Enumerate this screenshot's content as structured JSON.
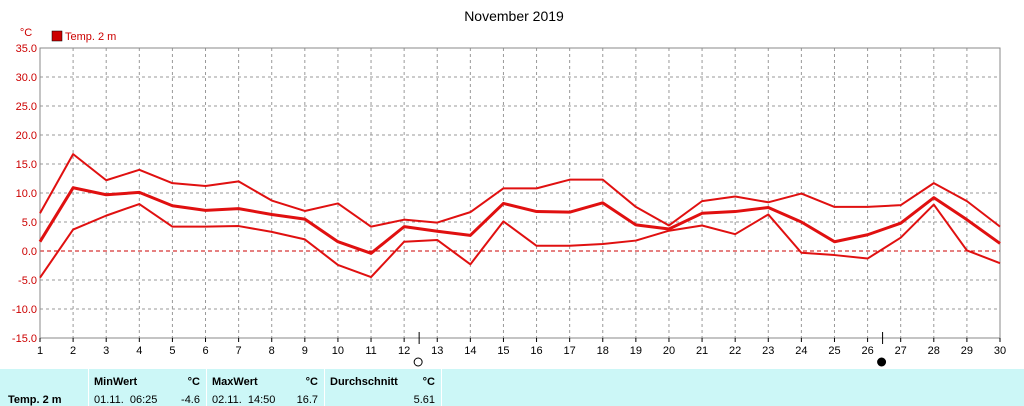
{
  "chart_data": {
    "type": "line",
    "title": "November 2019",
    "unit": "°C",
    "legend": {
      "label": "Temp. 2 m",
      "color": "#cc0000",
      "placement": "top-left"
    },
    "x": [
      1,
      2,
      3,
      4,
      5,
      6,
      7,
      8,
      9,
      10,
      11,
      12,
      13,
      14,
      15,
      16,
      17,
      18,
      19,
      20,
      21,
      22,
      23,
      24,
      25,
      26,
      27,
      28,
      29,
      30
    ],
    "ylim": [
      -15,
      35
    ],
    "yticks": [
      "35.0",
      "30.0",
      "25.0",
      "20.0",
      "15.0",
      "10.0",
      "5.0",
      "0.0",
      "-5.0",
      "-10.0",
      "-15.0"
    ],
    "grid": true,
    "series": [
      {
        "role": "max",
        "values": [
          6.5,
          16.7,
          12.2,
          14.0,
          11.7,
          11.2,
          12.0,
          8.7,
          6.9,
          8.2,
          4.2,
          5.4,
          4.9,
          6.7,
          10.8,
          10.8,
          12.3,
          12.3,
          7.6,
          4.4,
          8.6,
          9.4,
          8.4,
          9.9,
          7.6,
          7.6,
          7.9,
          11.7,
          8.6,
          4.2
        ]
      },
      {
        "role": "avg",
        "values": [
          1.6,
          10.9,
          9.7,
          10.1,
          7.8,
          7.0,
          7.3,
          6.3,
          5.5,
          1.6,
          -0.4,
          4.2,
          3.4,
          2.7,
          8.2,
          6.8,
          6.7,
          8.3,
          4.5,
          3.8,
          6.5,
          6.8,
          7.5,
          5.0,
          1.6,
          2.8,
          4.8,
          9.2,
          5.4,
          1.3
        ]
      },
      {
        "role": "min",
        "values": [
          -4.6,
          3.7,
          6.1,
          8.1,
          4.2,
          4.2,
          4.3,
          3.3,
          2.0,
          -2.4,
          -4.5,
          1.6,
          1.9,
          -2.3,
          5.1,
          0.9,
          0.9,
          1.2,
          1.8,
          3.5,
          4.4,
          2.9,
          6.3,
          -0.3,
          -0.7,
          -1.3,
          2.3,
          8.0,
          0.1,
          -2.1
        ]
      }
    ],
    "moon_phases": [
      {
        "day": 12,
        "phase": "full-moon"
      },
      {
        "day": 26,
        "phase": "new-moon"
      }
    ]
  },
  "stats": {
    "row_label": "Temp. 2 m",
    "min": {
      "header": "MinWert",
      "unit": "°C",
      "datetime": "01.11.  06:25",
      "value": "-4.6"
    },
    "max": {
      "header": "MaxWert",
      "unit": "°C",
      "datetime": "02.11.  14:50",
      "value": "16.7"
    },
    "avg": {
      "header": "Durchschnitt",
      "unit": "°C",
      "value": "5.61"
    }
  }
}
